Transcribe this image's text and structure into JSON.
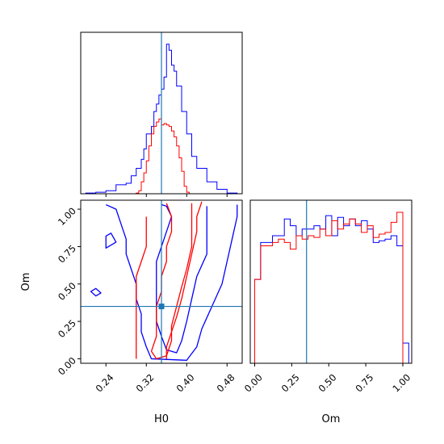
{
  "chart_data": [
    {
      "type": "histogram",
      "panel": "hist-H0",
      "parameter": "H0",
      "xlim": [
        0.19,
        0.51
      ],
      "x_ticks": [
        0.24,
        0.32,
        0.4,
        0.48
      ],
      "y_tick_labels_shown": false,
      "truth_value": 0.35,
      "colors": {
        "blue": "#0000ff",
        "red": "#ff0000",
        "truth": "#1f77b4"
      },
      "series": [
        {
          "color": "blue",
          "bin_edges": [
            0.2,
            0.22,
            0.24,
            0.26,
            0.28,
            0.29,
            0.3,
            0.31,
            0.315,
            0.32,
            0.33,
            0.335,
            0.34,
            0.345,
            0.35,
            0.355,
            0.36,
            0.365,
            0.37,
            0.375,
            0.38,
            0.39,
            0.4,
            0.41,
            0.42,
            0.44,
            0.46,
            0.48,
            0.5
          ],
          "counts": [
            0.5,
            1,
            2,
            6,
            7,
            12,
            17,
            23,
            30,
            40,
            45,
            55,
            60,
            66,
            70,
            78,
            100,
            96,
            86,
            82,
            72,
            55,
            40,
            25,
            17,
            8,
            3,
            0.5
          ]
        },
        {
          "color": "red",
          "bin_edges": [
            0.3,
            0.305,
            0.31,
            0.315,
            0.32,
            0.325,
            0.33,
            0.335,
            0.34,
            0.345,
            0.35,
            0.355,
            0.36,
            0.365,
            0.37,
            0.375,
            0.38,
            0.385,
            0.39,
            0.395,
            0.4,
            0.405
          ],
          "counts": [
            0.5,
            2,
            8,
            14,
            22,
            32,
            40,
            45,
            48,
            50,
            46,
            47,
            46,
            45,
            42,
            38,
            32,
            24,
            15,
            5,
            1
          ]
        }
      ]
    },
    {
      "type": "contour",
      "panel": "contour-H0-Om",
      "xlabel": "H0",
      "ylabel": "Om",
      "xlim": [
        0.19,
        0.51
      ],
      "ylim": [
        -0.03,
        1.06
      ],
      "x_ticks": [
        0.24,
        0.32,
        0.4,
        0.48
      ],
      "y_ticks": [
        0.0,
        0.25,
        0.5,
        0.75,
        1.0
      ],
      "truth": {
        "H0": 0.35,
        "Om": 0.35
      },
      "series": [
        {
          "color": "blue",
          "contours": [
            [
              [
                0.35,
                1.03
              ],
              [
                0.36,
                1.02
              ],
              [
                0.37,
                0.95
              ],
              [
                0.36,
                0.85
              ],
              [
                0.35,
                0.75
              ],
              [
                0.34,
                0.65
              ],
              [
                0.34,
                0.55
              ],
              [
                0.34,
                0.45
              ],
              [
                0.34,
                0.35
              ],
              [
                0.34,
                0.25
              ],
              [
                0.35,
                0.15
              ],
              [
                0.36,
                0.06
              ],
              [
                0.38,
                0.04
              ],
              [
                0.39,
                0.12
              ],
              [
                0.4,
                0.25
              ],
              [
                0.41,
                0.4
              ],
              [
                0.42,
                0.55
              ],
              [
                0.44,
                0.7
              ],
              [
                0.44,
                0.85
              ],
              [
                0.44,
                1.02
              ]
            ],
            [
              [
                0.24,
                1.03
              ],
              [
                0.26,
                1.0
              ],
              [
                0.27,
                0.9
              ],
              [
                0.28,
                0.8
              ],
              [
                0.28,
                0.7
              ],
              [
                0.29,
                0.6
              ],
              [
                0.3,
                0.5
              ],
              [
                0.3,
                0.4
              ],
              [
                0.31,
                0.3
              ],
              [
                0.31,
                0.18
              ],
              [
                0.32,
                0.08
              ],
              [
                0.33,
                0.0
              ],
              [
                0.4,
                -0.01
              ],
              [
                0.42,
                0.08
              ],
              [
                0.43,
                0.2
              ],
              [
                0.45,
                0.35
              ],
              [
                0.47,
                0.5
              ],
              [
                0.48,
                0.65
              ],
              [
                0.49,
                0.8
              ],
              [
                0.5,
                0.95
              ],
              [
                0.5,
                1.03
              ]
            ],
            [
              [
                0.26,
                0.78
              ],
              [
                0.24,
                0.74
              ],
              [
                0.24,
                0.82
              ],
              [
                0.25,
                0.84
              ]
            ],
            [
              [
                0.21,
                0.45
              ],
              [
                0.22,
                0.42
              ],
              [
                0.23,
                0.44
              ],
              [
                0.22,
                0.47
              ]
            ]
          ]
        },
        {
          "color": "red",
          "contours": [
            [
              [
                0.36,
                1.04
              ],
              [
                0.37,
                0.95
              ],
              [
                0.37,
                0.85
              ],
              [
                0.36,
                0.75
              ],
              [
                0.36,
                0.65
              ],
              [
                0.35,
                0.55
              ],
              [
                0.35,
                0.45
              ],
              [
                0.34,
                0.35
              ],
              [
                0.34,
                0.25
              ],
              [
                0.34,
                0.15
              ],
              [
                0.33,
                0.05
              ],
              [
                0.34,
                0.0
              ],
              [
                0.36,
                0.02
              ],
              [
                0.37,
                0.12
              ],
              [
                0.37,
                0.22
              ],
              [
                0.38,
                0.35
              ],
              [
                0.39,
                0.48
              ],
              [
                0.4,
                0.6
              ],
              [
                0.41,
                0.75
              ],
              [
                0.41,
                0.9
              ],
              [
                0.41,
                1.04
              ]
            ],
            [
              [
                0.32,
                0.95
              ],
              [
                0.32,
                0.85
              ],
              [
                0.32,
                0.75
              ],
              [
                0.31,
                0.65
              ],
              [
                0.3,
                0.55
              ],
              [
                0.3,
                0.45
              ],
              [
                0.3,
                0.35
              ],
              [
                0.3,
                0.25
              ],
              [
                0.3,
                0.15
              ],
              [
                0.3,
                0.05
              ],
              [
                0.3,
                0.0
              ]
            ],
            [
              [
                0.43,
                1.05
              ],
              [
                0.42,
                0.95
              ],
              [
                0.42,
                0.85
              ],
              [
                0.41,
                0.7
              ],
              [
                0.4,
                0.55
              ],
              [
                0.39,
                0.4
              ],
              [
                0.38,
                0.28
              ],
              [
                0.37,
                0.18
              ],
              [
                0.36,
                0.08
              ],
              [
                0.36,
                0.0
              ]
            ]
          ]
        }
      ]
    },
    {
      "type": "histogram",
      "panel": "hist-Om",
      "parameter": "Om",
      "xlabel": "Om",
      "xlim": [
        -0.03,
        1.06
      ],
      "x_ticks": [
        0.0,
        0.25,
        0.5,
        0.75,
        1.0
      ],
      "truth_value": 0.35,
      "colors": {
        "blue": "#0000ff",
        "red": "#ff0000",
        "truth": "#1f77b4"
      },
      "series": [
        {
          "color": "blue",
          "bin_edges": [
            0.0,
            0.04,
            0.08,
            0.12,
            0.16,
            0.2,
            0.24,
            0.28,
            0.32,
            0.36,
            0.4,
            0.44,
            0.48,
            0.52,
            0.56,
            0.6,
            0.64,
            0.68,
            0.72,
            0.76,
            0.8,
            0.84,
            0.88,
            0.92,
            0.96,
            1.0,
            1.04
          ],
          "counts": [
            50,
            72,
            72,
            76,
            76,
            86,
            82,
            76,
            80,
            80,
            82,
            80,
            88,
            76,
            87,
            82,
            86,
            82,
            85,
            80,
            72,
            73,
            74,
            76,
            70,
            12
          ]
        },
        {
          "color": "red",
          "bin_edges": [
            0.0,
            0.04,
            0.08,
            0.12,
            0.16,
            0.2,
            0.24,
            0.28,
            0.32,
            0.36,
            0.4,
            0.44,
            0.48,
            0.52,
            0.56,
            0.6,
            0.64,
            0.68,
            0.72,
            0.76,
            0.8,
            0.84,
            0.88,
            0.92,
            0.96,
            1.0
          ],
          "counts": [
            50,
            70,
            70,
            72,
            74,
            72,
            68,
            76,
            74,
            76,
            75,
            80,
            76,
            85,
            80,
            83,
            86,
            83,
            78,
            82,
            75,
            77,
            78,
            84,
            90
          ]
        }
      ]
    }
  ]
}
